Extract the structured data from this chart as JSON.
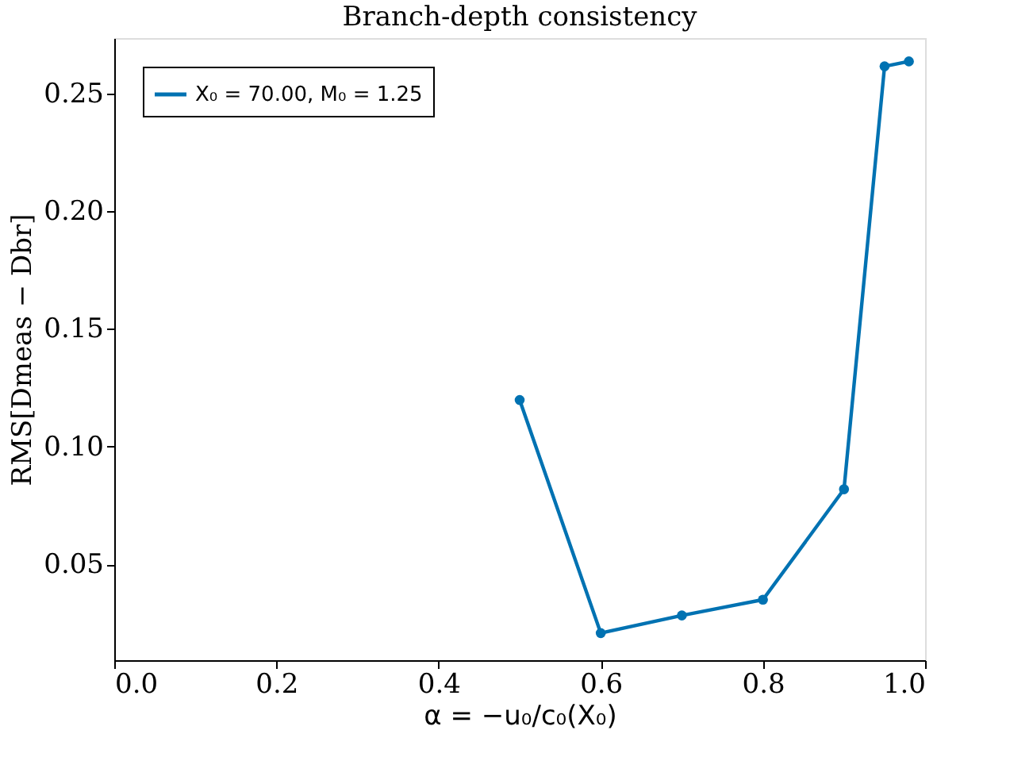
{
  "chart_data": {
    "type": "line",
    "title": "Branch-depth consistency",
    "xlabel": "α = −u₀/c₀(X₀)",
    "ylabel": "RMS[Dmeas − Dbr]",
    "x": [
      0.5,
      0.6,
      0.7,
      0.8,
      0.9,
      0.95,
      0.98
    ],
    "series": [
      {
        "name": "X₀ = 70.00, M₀ = 1.25",
        "color": "#0072b2",
        "values": [
          0.1198,
          0.0208,
          0.0283,
          0.035,
          0.0819,
          0.2615,
          0.2636
        ]
      }
    ],
    "xlim": [
      0,
      1
    ],
    "ylim": [
      0.0093,
      0.2735
    ],
    "xticks": [
      {
        "value": 0,
        "label": "0.0"
      },
      0.2,
      0.4,
      0.6,
      0.8,
      {
        "value": 1,
        "label": "1.0"
      }
    ],
    "yticks": [
      0.05,
      {
        "value": 0.1,
        "label": "0.10"
      },
      0.15,
      {
        "value": 0.2,
        "label": "0.20"
      },
      0.25
    ],
    "legend": "top left",
    "marker": "circle",
    "line_style": "solid",
    "grid": false
  }
}
